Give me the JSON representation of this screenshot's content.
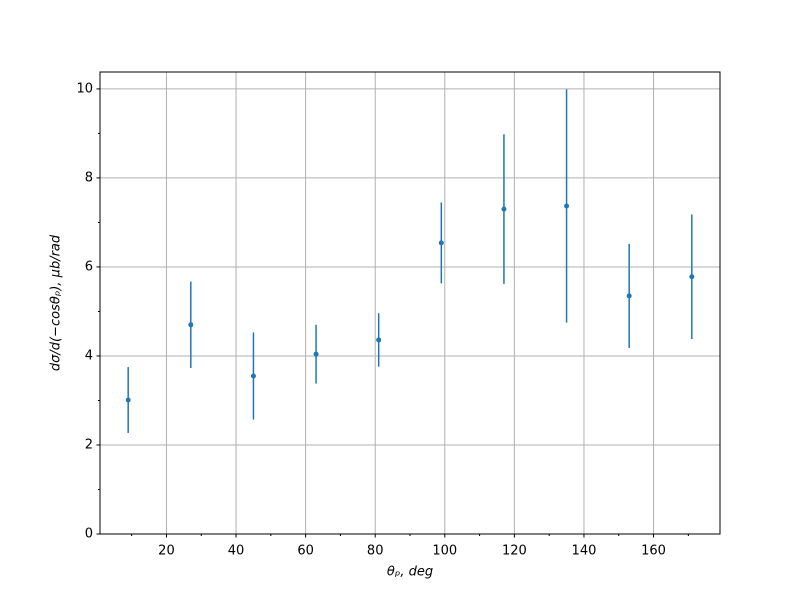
{
  "chart_data": {
    "type": "errorbar",
    "x_label": "θₚ, deg",
    "y_label": "dσ/d(−cosθₚ), μb/rad",
    "x": [
      9,
      27,
      45,
      63,
      81,
      99,
      117,
      135,
      153,
      171
    ],
    "values": [
      3.01,
      4.7,
      3.55,
      4.04,
      4.36,
      6.54,
      7.3,
      7.37,
      5.35,
      5.78
    ],
    "errors": [
      0.74,
      0.97,
      0.98,
      0.66,
      0.6,
      0.91,
      1.68,
      2.62,
      1.17,
      1.4
    ],
    "color": "#1f77b4",
    "xlim": [
      0.9,
      179.1
    ],
    "ylim": [
      0,
      10.38
    ],
    "xticks": [
      20,
      40,
      60,
      80,
      100,
      120,
      140,
      160
    ],
    "yticks": [
      0,
      2,
      4,
      6,
      8,
      10
    ],
    "xminor_ticks": [
      10,
      30,
      50,
      70,
      90,
      110,
      130,
      150,
      170
    ],
    "yminor_ticks": [
      1,
      3,
      5,
      7,
      9
    ],
    "grid": true
  }
}
